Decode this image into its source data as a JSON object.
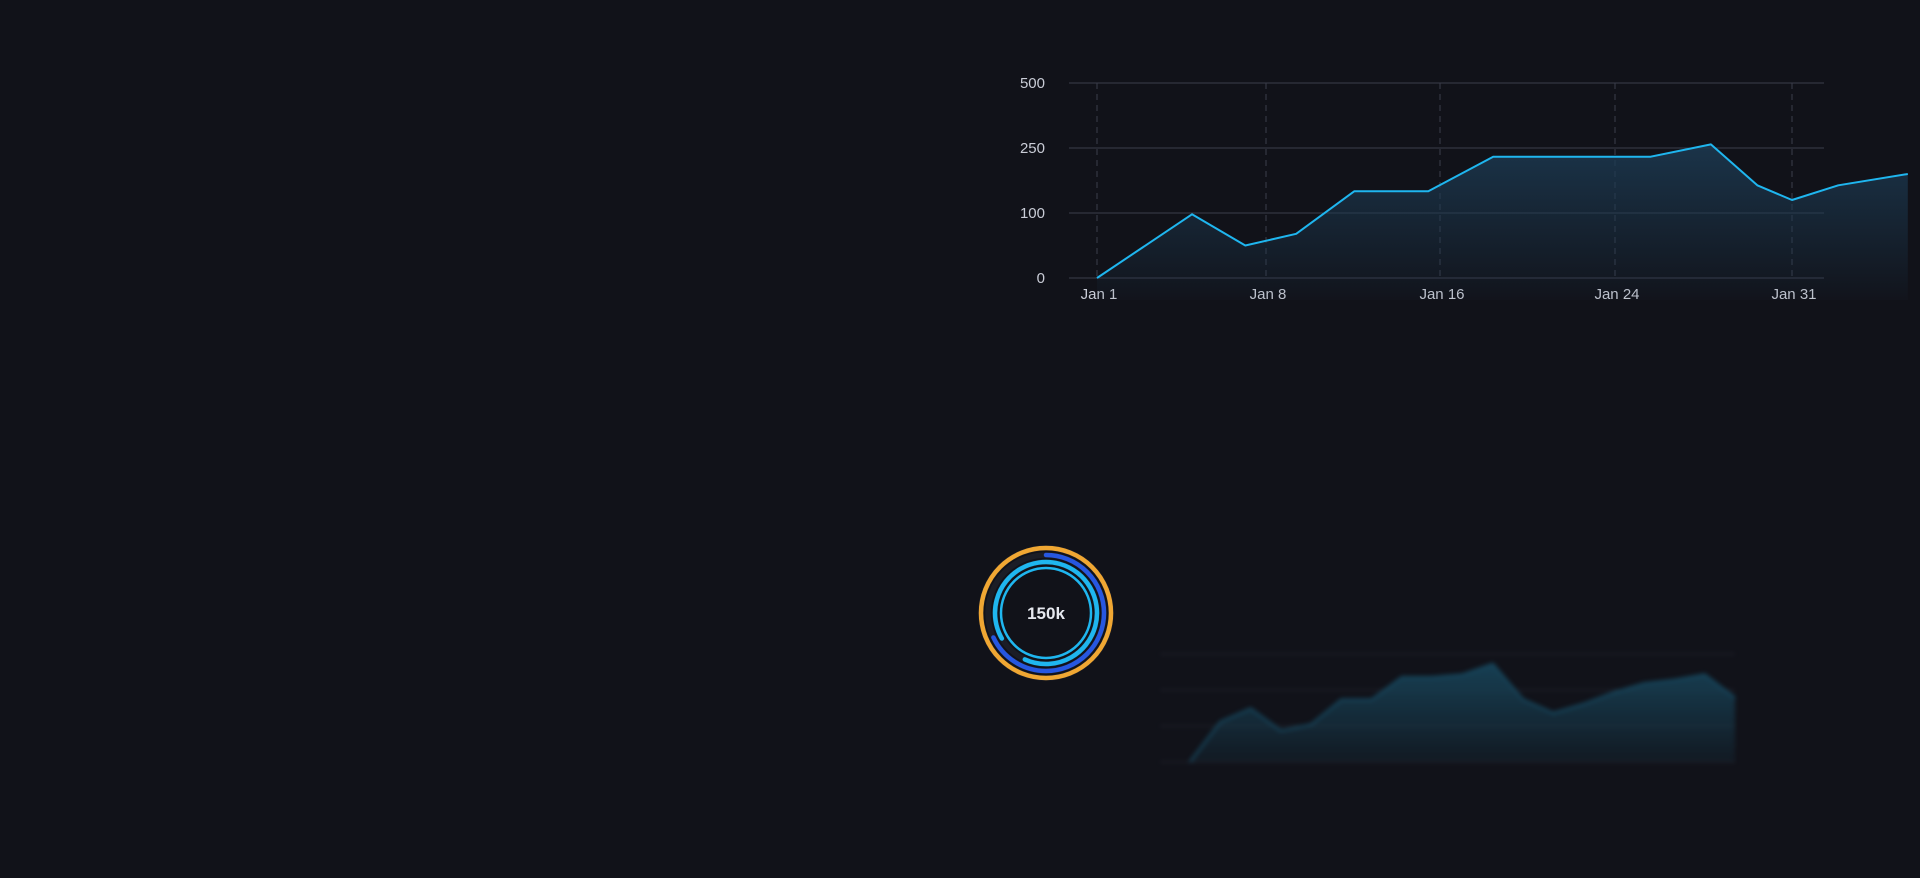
{
  "colors": {
    "background": "#111219",
    "line": "#1fb6ef",
    "area_top": "#1c3a52",
    "gridline": "#3a3d4a",
    "dashed": "#2a2d38",
    "tick_text": "#c9ccd6",
    "donut_outer": "#f0a733",
    "donut_middle": "#2757e0",
    "donut_inner": "#1fb6ef"
  },
  "chart_data": [
    {
      "type": "area",
      "title": "",
      "xlabel": "",
      "ylabel": "",
      "y_ticks": [
        "0",
        "100",
        "250",
        "500"
      ],
      "x_ticks": [
        "Jan 1",
        "Jan 8",
        "Jan 16",
        "Jan 24",
        "Jan 31"
      ],
      "grid": "horizontal solid, vertical dashed",
      "series": [
        {
          "x": [
            1,
            5.1,
            7.4,
            9.6,
            12.1,
            15.3,
            18.1,
            24.9,
            27.5,
            29.5,
            31,
            33,
            36
          ],
          "y": [
            0,
            98,
            50,
            68,
            150,
            150,
            230,
            230,
            264,
            164,
            130,
            164,
            190
          ]
        }
      ]
    },
    {
      "type": "pie",
      "subtype": "concentric rings",
      "center_label": "150k",
      "rings": [
        {
          "color": "#f0a733",
          "fraction": 1.0
        },
        {
          "color": "#2757e0",
          "fraction": 0.68
        },
        {
          "color": "#1fb6ef",
          "fraction": 0.9
        }
      ]
    },
    {
      "type": "area",
      "blurred": true,
      "series": [
        {
          "values": [
            0,
            45,
            60,
            35,
            42,
            70,
            70,
            95,
            95,
            98,
            110,
            70,
            55,
            65,
            78,
            88,
            92,
            98,
            72
          ]
        }
      ]
    }
  ]
}
